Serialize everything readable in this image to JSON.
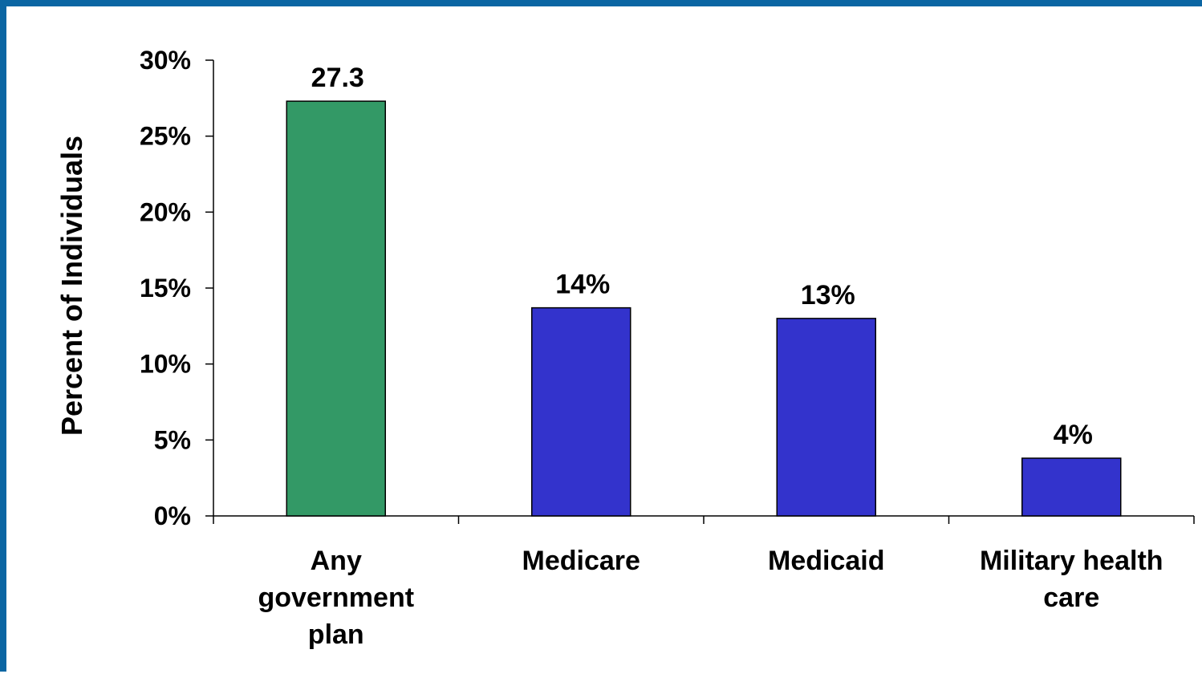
{
  "frame_color": "#0B66A3",
  "chart_data": {
    "type": "bar",
    "title": "",
    "xlabel": "",
    "ylabel": "Percent of Individuals",
    "ylim": [
      0,
      30
    ],
    "yticks": [
      0,
      5,
      10,
      15,
      20,
      25,
      30
    ],
    "ytick_labels": [
      "0%",
      "5%",
      "10%",
      "15%",
      "20%",
      "25%",
      "30%"
    ],
    "categories": [
      [
        "Any",
        "government",
        "plan"
      ],
      [
        "Medicare"
      ],
      [
        "Medicaid"
      ],
      [
        "Military health",
        "care"
      ]
    ],
    "values": [
      27.3,
      13.7,
      13.0,
      3.8
    ],
    "data_labels": [
      "27.3",
      "14%",
      "13%",
      "4%"
    ],
    "colors": [
      "#339966",
      "#3333CC",
      "#3333CC",
      "#3333CC"
    ],
    "grid": false,
    "legend": "none"
  }
}
